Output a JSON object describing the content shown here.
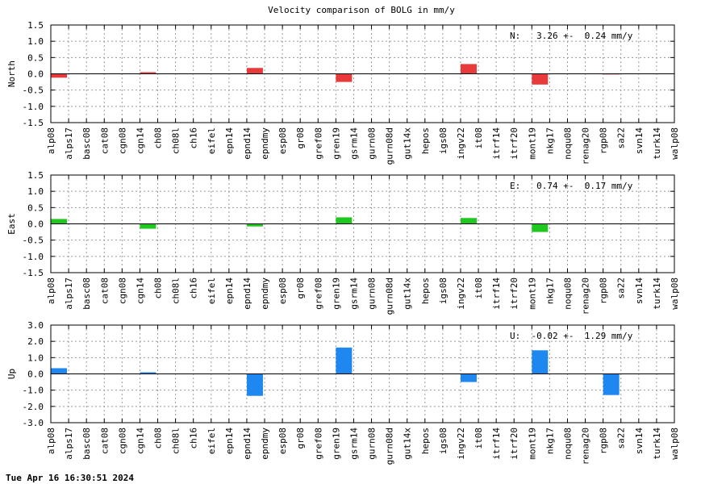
{
  "title": "Velocity comparison of BOLG in mm/y",
  "footer": "Tue Apr 16 16:30:51 2024",
  "chart_data": [
    {
      "type": "bar",
      "ylabel": "North",
      "ylim": [
        -1.5,
        1.5
      ],
      "yticks": [
        -1.5,
        -1.0,
        -0.5,
        0.0,
        0.5,
        1.0,
        1.5
      ],
      "ytick_labels": [
        "-1.5",
        "-1.0",
        "-0.5",
        "0.0",
        "0.5",
        "1.0",
        "1.5"
      ],
      "color": "#e83a3a",
      "annotation": "N:   3.26 +-  0.24 mm/y",
      "grid": true,
      "categories": [
        "alp08",
        "alps17",
        "basc08",
        "cat08",
        "cgn08",
        "cgn14",
        "ch08",
        "ch08l",
        "ch16",
        "eifel",
        "epn14",
        "epnd14",
        "epndmy",
        "esp08",
        "gr08",
        "gref08",
        "gren19",
        "gsrm14",
        "gurn08",
        "gurn08d",
        "gut14x",
        "hepos",
        "igs08",
        "ingv22",
        "it08",
        "itrf14",
        "itrf20",
        "mont19",
        "nkg17",
        "noqu08",
        "renag20",
        "rgp08",
        "sa22",
        "svn14",
        "turk14",
        "walp08"
      ],
      "values": [
        -0.12,
        0,
        0,
        0,
        0,
        0.05,
        0,
        0,
        0,
        0,
        0,
        0.18,
        0,
        0,
        0,
        0,
        -0.25,
        0,
        0,
        0,
        0,
        0,
        0,
        0.3,
        0,
        0,
        0,
        -0.33,
        0,
        0,
        0,
        -0.02,
        0,
        0,
        0,
        0
      ]
    },
    {
      "type": "bar",
      "ylabel": "East",
      "ylim": [
        -1.5,
        1.5
      ],
      "yticks": [
        -1.5,
        -1.0,
        -0.5,
        0.0,
        0.5,
        1.0,
        1.5
      ],
      "ytick_labels": [
        "-1.5",
        "-1.0",
        "-0.5",
        "0.0",
        "0.5",
        "1.0",
        "1.5"
      ],
      "color": "#1ec81e",
      "annotation": "E:   0.74 +-  0.17 mm/y",
      "grid": true,
      "categories": [
        "alp08",
        "alps17",
        "basc08",
        "cat08",
        "cgn08",
        "cgn14",
        "ch08",
        "ch08l",
        "ch16",
        "eifel",
        "epn14",
        "epnd14",
        "epndmy",
        "esp08",
        "gr08",
        "gref08",
        "gren19",
        "gsrm14",
        "gurn08",
        "gurn08d",
        "gut14x",
        "hepos",
        "igs08",
        "ingv22",
        "it08",
        "itrf14",
        "itrf20",
        "mont19",
        "nkg17",
        "noqu08",
        "renag20",
        "rgp08",
        "sa22",
        "svn14",
        "turk14",
        "walp08"
      ],
      "values": [
        0.15,
        0,
        0,
        0,
        0,
        -0.15,
        0,
        0,
        0,
        0,
        0,
        -0.08,
        0,
        0,
        0,
        0,
        0.2,
        0,
        0,
        0,
        0,
        0,
        0,
        0.18,
        0,
        0,
        0,
        -0.25,
        0,
        0,
        0,
        0,
        0,
        0,
        0,
        0
      ]
    },
    {
      "type": "bar",
      "ylabel": "Up",
      "ylim": [
        -3.0,
        3.0
      ],
      "yticks": [
        -3.0,
        -2.0,
        -1.0,
        0.0,
        1.0,
        2.0,
        3.0
      ],
      "ytick_labels": [
        "-3.0",
        "-2.0",
        "-1.0",
        "0.0",
        "1.0",
        "2.0",
        "3.0"
      ],
      "color": "#1e88f0",
      "annotation": "U:  -0.02 +-  1.29 mm/y",
      "grid": true,
      "categories": [
        "alp08",
        "alps17",
        "basc08",
        "cat08",
        "cgn08",
        "cgn14",
        "ch08",
        "ch08l",
        "ch16",
        "eifel",
        "epn14",
        "epnd14",
        "epndmy",
        "esp08",
        "gr08",
        "gref08",
        "gren19",
        "gsrm14",
        "gurn08",
        "gurn08d",
        "gut14x",
        "hepos",
        "igs08",
        "ingv22",
        "it08",
        "itrf14",
        "itrf20",
        "mont19",
        "nkg17",
        "noqu08",
        "renag20",
        "rgp08",
        "sa22",
        "svn14",
        "turk14",
        "walp08"
      ],
      "values": [
        0.35,
        0,
        0,
        0,
        0,
        0.1,
        0,
        0,
        0,
        0,
        0,
        -1.35,
        0,
        0,
        0,
        0,
        1.62,
        0,
        0,
        0,
        0,
        0,
        0,
        -0.5,
        0,
        0,
        0,
        1.45,
        0,
        0,
        0,
        -1.3,
        0,
        0,
        0,
        0
      ]
    }
  ]
}
